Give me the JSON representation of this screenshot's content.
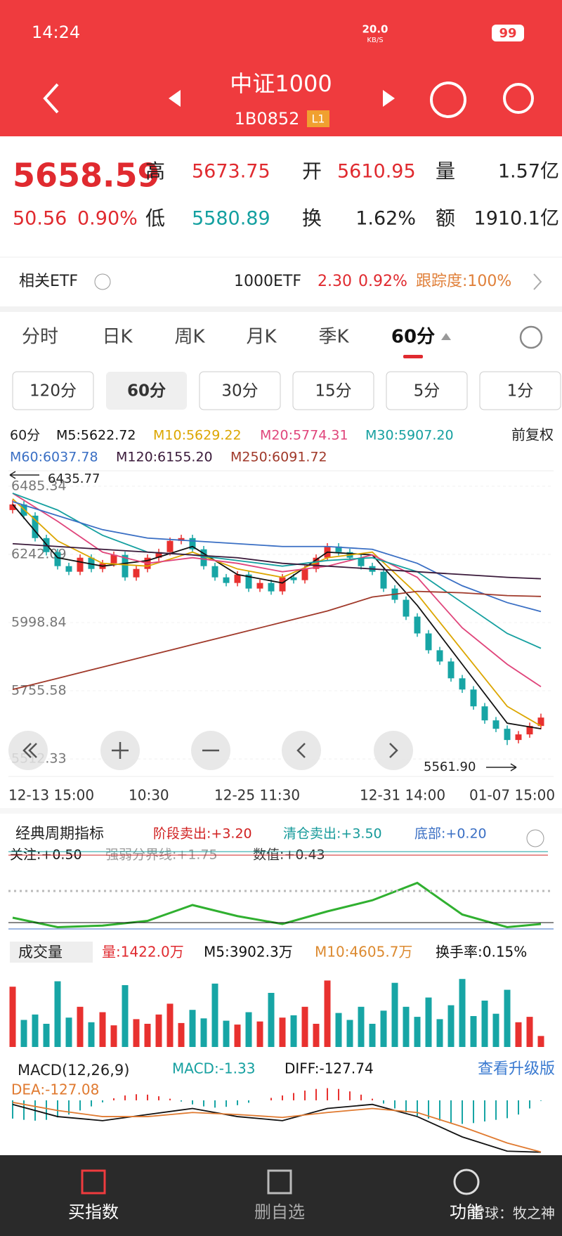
{
  "status": {
    "time": "14:24",
    "speed": "20.0",
    "speed_unit": "KB/S",
    "battery": "99"
  },
  "header": {
    "title": "中证1000",
    "code": "1B0852",
    "badge": "L1"
  },
  "quote": {
    "price": "5658.59",
    "change": "50.56",
    "pct": "0.90%",
    "high_label": "高",
    "high": "5673.75",
    "open_label": "开",
    "open": "5610.95",
    "volume_label": "量",
    "volume": "1.57亿",
    "low_label": "低",
    "low": "5580.89",
    "turnover_label": "换",
    "turnover": "1.62%",
    "amount_label": "额",
    "amount": "1910.1亿"
  },
  "etf": {
    "label": "相关ETF",
    "name": "1000ETF",
    "price": "2.30",
    "pct": "0.92%",
    "tracking": "跟踪度:100%"
  },
  "tabs": [
    "分时",
    "日K",
    "周K",
    "月K",
    "季K",
    "60分"
  ],
  "periods": [
    "120分",
    "60分",
    "30分",
    "15分",
    "5分",
    "1分"
  ],
  "chart_data": [
    {
      "type": "candlestick",
      "period": "60分",
      "adjust": "前复权",
      "up_color": "#e8312f",
      "down_color": "#17a5a5",
      "ylim": [
        5450,
        6540
      ],
      "yticks": [
        6485.34,
        6242.09,
        5998.84,
        5755.58,
        5512.33
      ],
      "x_labels": [
        "12-13 15:00",
        "10:30",
        "12-25 11:30",
        "12-31 14:00",
        "01-07 15:00"
      ],
      "max_label": "6435.77",
      "min_label": "5561.90",
      "candles": [
        [
          6400,
          6436,
          6388,
          6420
        ],
        [
          6420,
          6432,
          6368,
          6380
        ],
        [
          6380,
          6392,
          6288,
          6300
        ],
        [
          6300,
          6312,
          6238,
          6250
        ],
        [
          6250,
          6262,
          6188,
          6200
        ],
        [
          6200,
          6212,
          6168,
          6180
        ],
        [
          6180,
          6242,
          6168,
          6230
        ],
        [
          6230,
          6242,
          6178,
          6190
        ],
        [
          6190,
          6222,
          6178,
          6210
        ],
        [
          6210,
          6252,
          6198,
          6240
        ],
        [
          6240,
          6252,
          6148,
          6160
        ],
        [
          6160,
          6202,
          6148,
          6190
        ],
        [
          6190,
          6242,
          6178,
          6230
        ],
        [
          6230,
          6262,
          6218,
          6250
        ],
        [
          6250,
          6302,
          6238,
          6290
        ],
        [
          6290,
          6312,
          6278,
          6300
        ],
        [
          6300,
          6312,
          6248,
          6260
        ],
        [
          6260,
          6272,
          6188,
          6200
        ],
        [
          6200,
          6212,
          6148,
          6160
        ],
        [
          6160,
          6172,
          6128,
          6140
        ],
        [
          6140,
          6182,
          6128,
          6170
        ],
        [
          6170,
          6182,
          6108,
          6120
        ],
        [
          6120,
          6152,
          6108,
          6140
        ],
        [
          6140,
          6152,
          6098,
          6110
        ],
        [
          6110,
          6172,
          6098,
          6160
        ],
        [
          6160,
          6172,
          6138,
          6150
        ],
        [
          6150,
          6202,
          6138,
          6190
        ],
        [
          6190,
          6242,
          6178,
          6230
        ],
        [
          6230,
          6282,
          6218,
          6270
        ],
        [
          6270,
          6282,
          6238,
          6250
        ],
        [
          6250,
          6262,
          6218,
          6230
        ],
        [
          6230,
          6242,
          6188,
          6200
        ],
        [
          6200,
          6212,
          6168,
          6180
        ],
        [
          6180,
          6192,
          6108,
          6120
        ],
        [
          6120,
          6132,
          6068,
          6080
        ],
        [
          6080,
          6092,
          6008,
          6020
        ],
        [
          6020,
          6032,
          5948,
          5960
        ],
        [
          5960,
          5972,
          5888,
          5900
        ],
        [
          5900,
          5912,
          5848,
          5860
        ],
        [
          5860,
          5872,
          5788,
          5800
        ],
        [
          5800,
          5812,
          5748,
          5760
        ],
        [
          5760,
          5772,
          5688,
          5700
        ],
        [
          5700,
          5712,
          5638,
          5650
        ],
        [
          5650,
          5662,
          5608,
          5620
        ],
        [
          5620,
          5632,
          5562,
          5580
        ],
        [
          5580,
          5612,
          5568,
          5600
        ],
        [
          5600,
          5642,
          5588,
          5630
        ],
        [
          5630,
          5674,
          5618,
          5660
        ]
      ],
      "ma_x": [
        0,
        4,
        8,
        12,
        16,
        20,
        24,
        28,
        32,
        36,
        40,
        44,
        47
      ],
      "series": [
        {
          "name": "M5:5622.72",
          "color": "#111111",
          "values": [
            6420,
            6230,
            6200,
            6220,
            6270,
            6170,
            6140,
            6250,
            6240,
            6060,
            5850,
            5640,
            5620
          ]
        },
        {
          "name": "M10:5629.22",
          "color": "#dca600",
          "values": [
            6440,
            6290,
            6210,
            6200,
            6250,
            6190,
            6160,
            6230,
            6250,
            6100,
            5900,
            5700,
            5630
          ]
        },
        {
          "name": "M20:5774.31",
          "color": "#e0457b",
          "values": [
            6460,
            6360,
            6250,
            6210,
            6230,
            6210,
            6180,
            6200,
            6240,
            6160,
            5980,
            5850,
            5770
          ]
        },
        {
          "name": "M30:5907.20",
          "color": "#16a0a0",
          "values": [
            6460,
            6400,
            6310,
            6250,
            6240,
            6220,
            6200,
            6220,
            6230,
            6180,
            6070,
            5960,
            5907
          ]
        },
        {
          "name": "M60:6037.78",
          "color": "#3a6fc4",
          "values": [
            6430,
            6380,
            6330,
            6300,
            6290,
            6280,
            6270,
            6270,
            6260,
            6210,
            6130,
            6070,
            6038
          ]
        },
        {
          "name": "M120:6155.20",
          "color": "#3a1a3a",
          "values": [
            6280,
            6270,
            6260,
            6250,
            6240,
            6230,
            6210,
            6200,
            6190,
            6180,
            6170,
            6160,
            6155
          ]
        },
        {
          "name": "M250:6091.72",
          "color": "#a0392a",
          "values": [
            5760,
            5800,
            5840,
            5880,
            5920,
            5960,
            6000,
            6040,
            6090,
            6110,
            6105,
            6095,
            6092
          ]
        }
      ]
    },
    {
      "type": "line",
      "title": "经典周期指标",
      "color": "#30b030",
      "ylim": [
        0,
        4
      ],
      "legend": [
        {
          "name": "阶段卖出:+3.20",
          "color": "#d02020"
        },
        {
          "name": "清仓卖出:+3.50",
          "color": "#169a9a"
        },
        {
          "name": "底部:+0.20",
          "color": "#3a6fc4"
        },
        {
          "name": "关注:+0.50",
          "color": "#111111"
        },
        {
          "name": "强弱分界线:+1.75",
          "color": "#999999"
        },
        {
          "name": "数值:+0.43",
          "color": "#333333"
        }
      ],
      "values": [
        0.8,
        0.2,
        0.3,
        0.6,
        1.6,
        0.9,
        0.4,
        1.2,
        1.9,
        3.0,
        1.0,
        0.2,
        0.4
      ]
    },
    {
      "type": "bar",
      "title": "成交量",
      "ylim": [
        0,
        11000
      ],
      "legend": [
        {
          "name": "量:1422.0万",
          "color": "#e02a2f"
        },
        {
          "name": "M5:3902.3万",
          "color": "#111111"
        },
        {
          "name": "M10:4605.7万",
          "color": "#dc8a30"
        },
        {
          "name": "换手率:0.15%",
          "color": "#111111"
        }
      ],
      "values": [
        7800,
        3500,
        4200,
        3000,
        8500,
        3800,
        5200,
        3200,
        4500,
        2800,
        8000,
        3600,
        3000,
        4200,
        5600,
        3100,
        4800,
        3700,
        8200,
        3400,
        2900,
        4500,
        3300,
        7000,
        3800,
        4100,
        5200,
        3000,
        8600,
        4400,
        3500,
        5200,
        3000,
        4700,
        8300,
        5200,
        3900,
        6400,
        3600,
        5400,
        8800,
        4000,
        6000,
        4300,
        7400,
        3200,
        3900,
        1422
      ]
    },
    {
      "type": "macd",
      "title": "MACD(12,26,9)",
      "link": "查看升级版",
      "ylim": [
        -135,
        50
      ],
      "legend": [
        {
          "name": "MACD:-1.33",
          "color": "#16a0a0"
        },
        {
          "name": "DIFF:-127.74",
          "color": "#111111"
        },
        {
          "name": "DEA:-127.08",
          "color": "#e07a30"
        }
      ],
      "values": [
        -45,
        -48,
        -50,
        -48,
        -42,
        -35,
        -25,
        -15,
        -5,
        5,
        12,
        15,
        14,
        10,
        4,
        -3,
        -10,
        -15,
        -18,
        -16,
        -12,
        -6,
        0,
        6,
        12,
        18,
        24,
        28,
        30,
        28,
        22,
        14,
        4,
        -8,
        -20,
        -30,
        -38,
        -45,
        -50,
        -55,
        -58,
        -56,
        -52,
        -48,
        -44,
        -35,
        -20,
        -1.33
      ],
      "series": [
        {
          "name": "DIFF",
          "color": "#111111",
          "values": [
            -10,
            -40,
            -50,
            -35,
            -20,
            -40,
            -50,
            -20,
            -10,
            -40,
            -90,
            -125,
            -127.7
          ]
        },
        {
          "name": "DEA",
          "color": "#e07a30",
          "values": [
            -5,
            -25,
            -40,
            -40,
            -30,
            -35,
            -42,
            -30,
            -20,
            -30,
            -65,
            -105,
            -127.1
          ]
        }
      ]
    }
  ],
  "nav": [
    "买指数",
    "删自选",
    "功能"
  ],
  "watermark": "雪球：牧之神"
}
